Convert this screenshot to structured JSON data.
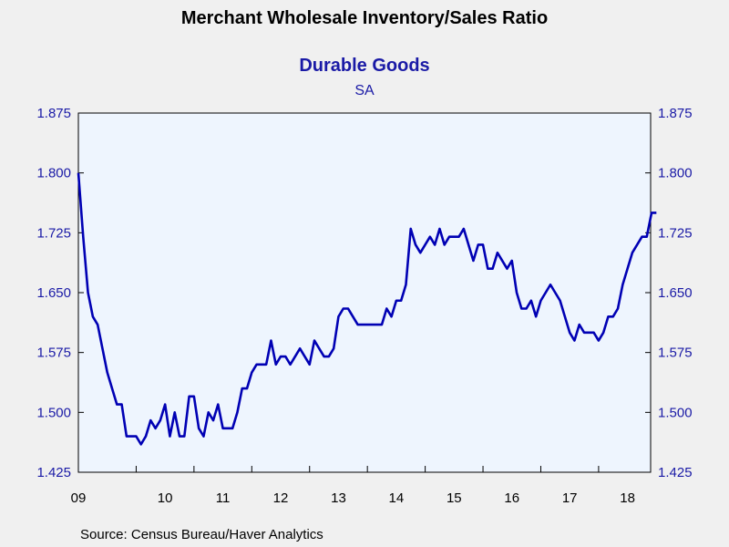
{
  "chart_data": {
    "type": "line",
    "title": "Merchant Wholesale Inventory/Sales Ratio",
    "subtitle": "Durable Goods",
    "unit_label": "SA",
    "source": "Source:  Census Bureau/Haver Analytics",
    "ylim": [
      1.425,
      1.875
    ],
    "yticks": [
      "1.875",
      "1.800",
      "1.725",
      "1.650",
      "1.575",
      "1.500",
      "1.425"
    ],
    "xlim": [
      2009.0,
      2018.9
    ],
    "xticks": [
      {
        "label": "09",
        "value": 2009.0
      },
      {
        "label": "10",
        "value": 2010.5
      },
      {
        "label": "11",
        "value": 2011.5
      },
      {
        "label": "12",
        "value": 2012.5
      },
      {
        "label": "13",
        "value": 2013.5
      },
      {
        "label": "14",
        "value": 2014.5
      },
      {
        "label": "15",
        "value": 2015.5
      },
      {
        "label": "16",
        "value": 2016.5
      },
      {
        "label": "17",
        "value": 2017.5
      },
      {
        "label": "18",
        "value": 2018.5
      }
    ],
    "grid": false,
    "colors": {
      "line": "#0000b4",
      "text": "#1a1aa6",
      "plot_bg": "#eef5fe"
    },
    "series": [
      {
        "start": 2009.0,
        "step": 0.08333,
        "values": [
          1.8,
          1.72,
          1.65,
          1.62,
          1.61,
          1.58,
          1.55,
          1.53,
          1.51,
          1.51,
          1.47,
          1.47,
          1.47,
          1.46,
          1.47,
          1.49,
          1.48,
          1.49,
          1.51,
          1.47,
          1.5,
          1.47,
          1.47,
          1.52,
          1.52,
          1.48,
          1.47,
          1.5,
          1.49,
          1.51,
          1.48,
          1.48,
          1.48,
          1.5,
          1.53,
          1.53,
          1.55,
          1.56,
          1.56,
          1.56,
          1.59,
          1.56,
          1.57,
          1.57,
          1.56,
          1.57,
          1.58,
          1.57,
          1.56,
          1.59,
          1.58,
          1.57,
          1.57,
          1.58,
          1.62,
          1.63,
          1.63,
          1.62,
          1.61,
          1.61,
          1.61,
          1.61,
          1.61,
          1.61,
          1.63,
          1.62,
          1.64,
          1.64,
          1.66,
          1.73,
          1.71,
          1.7,
          1.71,
          1.72,
          1.71,
          1.73,
          1.71,
          1.72,
          1.72,
          1.72,
          1.73,
          1.71,
          1.69,
          1.71,
          1.71,
          1.68,
          1.68,
          1.7,
          1.69,
          1.68,
          1.69,
          1.65,
          1.63,
          1.63,
          1.64,
          1.62,
          1.64,
          1.65,
          1.66,
          1.65,
          1.64,
          1.62,
          1.6,
          1.59,
          1.61,
          1.6,
          1.6,
          1.6,
          1.59,
          1.6,
          1.62,
          1.62,
          1.63,
          1.66,
          1.68,
          1.7,
          1.71,
          1.72,
          1.72,
          1.75,
          1.75
        ]
      }
    ]
  }
}
